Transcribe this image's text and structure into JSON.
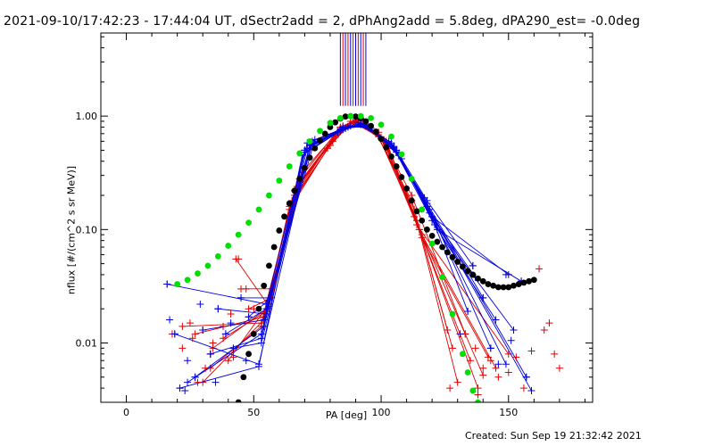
{
  "header": {
    "title": "2021-09-10/17:42:23 - 17:44:04 UT, dSectr2add = 2, dPhAng2add = 5.8deg, dPA290_est= -0.0deg",
    "created": "Created: Sun Sep 19 21:32:42 2021"
  },
  "chart_data": {
    "type": "line",
    "xlabel": "PA [deg]",
    "ylabel": "nflux [#/(cm^2 s sr MeV)]",
    "xlim": [
      -10,
      183
    ],
    "ylim": [
      0.003,
      5.4
    ],
    "yscale": "log",
    "x_ticks": [
      0,
      50,
      100,
      150
    ],
    "x_tick_labels": [
      "0",
      "50",
      "100",
      "150"
    ],
    "y_ticks": [
      0.01,
      0.1,
      1.0
    ],
    "y_tick_labels": [
      "0.01",
      "0.10",
      "1.00"
    ],
    "grid": false,
    "colors": {
      "reference_black": "#000000",
      "reference_green": "#00e000",
      "red": "#e00000",
      "blue": "#0000e0"
    },
    "reference_black": {
      "marker": "filled-circle",
      "x": [
        44,
        46,
        48,
        50,
        52,
        54,
        56,
        58,
        60,
        62,
        64,
        66,
        68,
        70,
        72,
        74,
        76,
        78,
        80,
        82,
        84,
        86,
        88,
        90,
        92,
        94,
        96,
        98,
        100,
        102,
        104,
        106,
        108,
        110,
        112,
        114,
        116,
        118,
        120,
        122,
        124,
        126,
        128,
        130,
        132,
        134,
        136,
        138,
        140,
        142,
        144,
        146,
        148,
        150,
        152,
        154,
        156,
        158,
        160
      ],
      "y": [
        0.003,
        0.005,
        0.008,
        0.012,
        0.02,
        0.032,
        0.048,
        0.07,
        0.098,
        0.13,
        0.17,
        0.22,
        0.28,
        0.35,
        0.43,
        0.52,
        0.61,
        0.7,
        0.8,
        0.88,
        0.95,
        0.99,
        1.0,
        0.99,
        0.96,
        0.9,
        0.82,
        0.73,
        0.63,
        0.53,
        0.44,
        0.36,
        0.29,
        0.23,
        0.18,
        0.145,
        0.12,
        0.1,
        0.088,
        0.078,
        0.07,
        0.063,
        0.057,
        0.052,
        0.047,
        0.043,
        0.04,
        0.037,
        0.035,
        0.033,
        0.032,
        0.031,
        0.031,
        0.031,
        0.032,
        0.033,
        0.034,
        0.035,
        0.036
      ]
    },
    "reference_green": {
      "marker": "filled-circle",
      "x": [
        20,
        24,
        28,
        32,
        36,
        40,
        44,
        48,
        52,
        56,
        60,
        64,
        68,
        72,
        76,
        80,
        84,
        88,
        92,
        96,
        100,
        104,
        108,
        112,
        116,
        120,
        124,
        128,
        132,
        134,
        136,
        138
      ],
      "y": [
        0.033,
        0.036,
        0.041,
        0.048,
        0.058,
        0.072,
        0.09,
        0.115,
        0.15,
        0.2,
        0.27,
        0.36,
        0.47,
        0.6,
        0.74,
        0.87,
        0.96,
        1.0,
        1.0,
        0.96,
        0.84,
        0.66,
        0.46,
        0.28,
        0.15,
        0.075,
        0.038,
        0.018,
        0.008,
        0.0055,
        0.0038,
        0.003
      ]
    },
    "markers_red": {
      "marker": "plus",
      "x": [
        18,
        22,
        25,
        28,
        31,
        34,
        38,
        41,
        44,
        47,
        50,
        26,
        33,
        42,
        127,
        133,
        137,
        140,
        143,
        146,
        150,
        153,
        156,
        159,
        162,
        164,
        166,
        168,
        170,
        138
      ],
      "y": [
        0.012,
        0.009,
        0.015,
        0.0045,
        0.006,
        0.01,
        0.014,
        0.018,
        0.055,
        0.03,
        0.02,
        0.011,
        0.008,
        0.0075,
        0.004,
        0.012,
        0.009,
        0.006,
        0.007,
        0.005,
        0.0055,
        0.0075,
        0.004,
        0.0085,
        0.045,
        0.013,
        0.015,
        0.008,
        0.006,
        0.0035
      ]
    },
    "markers_blue": {
      "marker": "plus",
      "x": [
        16,
        17,
        19,
        21,
        24,
        27,
        30,
        33,
        36,
        39,
        42,
        45,
        48,
        23,
        29,
        35,
        41,
        47,
        131,
        134,
        137,
        140,
        143,
        146,
        149,
        152,
        155,
        157,
        159,
        136,
        145,
        151
      ],
      "y": [
        0.033,
        0.016,
        0.012,
        0.004,
        0.007,
        0.005,
        0.013,
        0.008,
        0.02,
        0.012,
        0.009,
        0.025,
        0.017,
        0.0038,
        0.022,
        0.0045,
        0.015,
        0.007,
        0.012,
        0.019,
        0.038,
        0.025,
        0.009,
        0.0065,
        0.04,
        0.013,
        0.035,
        0.005,
        0.0038,
        0.048,
        0.016,
        0.0105
      ]
    },
    "vertical_lines": {
      "x": [
        84,
        85,
        86,
        87,
        88,
        89,
        90,
        91,
        92,
        93,
        94
      ],
      "y_from": 1.23,
      "y_to": 5.4
    },
    "profiles_red": [
      [
        [
          27,
          0.012
        ],
        [
          54,
          0.017
        ],
        [
          66,
          0.22
        ],
        [
          82,
          0.65
        ],
        [
          90,
          0.92
        ],
        [
          100,
          0.65
        ],
        [
          113,
          0.15
        ],
        [
          126,
          0.013
        ]
      ],
      [
        [
          34,
          0.009
        ],
        [
          55,
          0.02
        ],
        [
          68,
          0.28
        ],
        [
          84,
          0.8
        ],
        [
          92,
          0.95
        ],
        [
          102,
          0.58
        ],
        [
          114,
          0.12
        ],
        [
          130,
          0.0045
        ]
      ],
      [
        [
          22,
          0.014
        ],
        [
          53,
          0.015
        ],
        [
          65,
          0.18
        ],
        [
          80,
          0.55
        ],
        [
          88,
          0.9
        ],
        [
          98,
          0.7
        ],
        [
          112,
          0.18
        ],
        [
          128,
          0.009
        ]
      ],
      [
        [
          40,
          0.007
        ],
        [
          56,
          0.022
        ],
        [
          67,
          0.24
        ],
        [
          83,
          0.72
        ],
        [
          91,
          0.93
        ],
        [
          101,
          0.62
        ],
        [
          115,
          0.1
        ],
        [
          135,
          0.007
        ]
      ],
      [
        [
          30,
          0.0045
        ],
        [
          54,
          0.016
        ],
        [
          64,
          0.16
        ],
        [
          81,
          0.6
        ],
        [
          89,
          0.88
        ],
        [
          99,
          0.66
        ],
        [
          113,
          0.13
        ],
        [
          140,
          0.0052
        ]
      ],
      [
        [
          45,
          0.03
        ],
        [
          57,
          0.03
        ],
        [
          69,
          0.32
        ],
        [
          85,
          0.82
        ],
        [
          93,
          0.92
        ],
        [
          103,
          0.52
        ],
        [
          116,
          0.09
        ],
        [
          145,
          0.006
        ]
      ],
      [
        [
          38,
          0.011
        ],
        [
          55,
          0.019
        ],
        [
          66,
          0.2
        ],
        [
          82,
          0.68
        ],
        [
          90,
          0.9
        ],
        [
          100,
          0.63
        ],
        [
          114,
          0.11
        ],
        [
          150,
          0.008
        ]
      ],
      [
        [
          33,
          0.006
        ],
        [
          53,
          0.014
        ],
        [
          64,
          0.15
        ],
        [
          79,
          0.52
        ],
        [
          88,
          0.86
        ],
        [
          99,
          0.72
        ],
        [
          112,
          0.2
        ],
        [
          133,
          0.012
        ]
      ],
      [
        [
          48,
          0.02
        ],
        [
          57,
          0.025
        ],
        [
          68,
          0.26
        ],
        [
          84,
          0.78
        ],
        [
          91,
          0.96
        ],
        [
          102,
          0.6
        ],
        [
          115,
          0.1
        ],
        [
          138,
          0.004
        ]
      ],
      [
        [
          43,
          0.055
        ],
        [
          56,
          0.021
        ],
        [
          67,
          0.23
        ],
        [
          83,
          0.7
        ],
        [
          90,
          0.9
        ],
        [
          101,
          0.6
        ],
        [
          116,
          0.085
        ],
        [
          142,
          0.0075
        ]
      ]
    ],
    "profiles_blue": [
      [
        [
          16,
          0.033
        ],
        [
          55,
          0.022
        ],
        [
          70,
          0.5
        ],
        [
          85,
          0.8
        ],
        [
          93,
          0.84
        ],
        [
          104,
          0.58
        ],
        [
          118,
          0.17
        ],
        [
          140,
          0.025
        ]
      ],
      [
        [
          19,
          0.012
        ],
        [
          52,
          0.0065
        ],
        [
          72,
          0.55
        ],
        [
          86,
          0.78
        ],
        [
          94,
          0.82
        ],
        [
          106,
          0.5
        ],
        [
          120,
          0.13
        ],
        [
          150,
          0.04
        ]
      ],
      [
        [
          24,
          0.0045
        ],
        [
          53,
          0.012
        ],
        [
          71,
          0.58
        ],
        [
          84,
          0.76
        ],
        [
          92,
          0.86
        ],
        [
          105,
          0.54
        ],
        [
          119,
          0.15
        ],
        [
          157,
          0.005
        ]
      ],
      [
        [
          30,
          0.013
        ],
        [
          54,
          0.016
        ],
        [
          73,
          0.6
        ],
        [
          87,
          0.8
        ],
        [
          95,
          0.8
        ],
        [
          107,
          0.46
        ],
        [
          121,
          0.11
        ],
        [
          145,
          0.016
        ]
      ],
      [
        [
          36,
          0.02
        ],
        [
          55,
          0.018
        ],
        [
          70,
          0.5
        ],
        [
          83,
          0.72
        ],
        [
          91,
          0.88
        ],
        [
          103,
          0.6
        ],
        [
          117,
          0.19
        ],
        [
          134,
          0.019
        ]
      ],
      [
        [
          42,
          0.009
        ],
        [
          53,
          0.01
        ],
        [
          72,
          0.56
        ],
        [
          85,
          0.77
        ],
        [
          93,
          0.85
        ],
        [
          105,
          0.52
        ],
        [
          120,
          0.12
        ],
        [
          152,
          0.013
        ]
      ],
      [
        [
          48,
          0.017
        ],
        [
          56,
          0.024
        ],
        [
          74,
          0.62
        ],
        [
          88,
          0.82
        ],
        [
          96,
          0.78
        ],
        [
          108,
          0.42
        ],
        [
          122,
          0.1
        ],
        [
          155,
          0.035
        ]
      ],
      [
        [
          21,
          0.004
        ],
        [
          52,
          0.0062
        ],
        [
          69,
          0.45
        ],
        [
          84,
          0.74
        ],
        [
          92,
          0.84
        ],
        [
          104,
          0.56
        ],
        [
          118,
          0.16
        ],
        [
          159,
          0.0038
        ]
      ],
      [
        [
          27,
          0.005
        ],
        [
          54,
          0.014
        ],
        [
          71,
          0.52
        ],
        [
          86,
          0.79
        ],
        [
          94,
          0.83
        ],
        [
          106,
          0.48
        ],
        [
          121,
          0.12
        ],
        [
          143,
          0.009
        ]
      ],
      [
        [
          39,
          0.012
        ],
        [
          55,
          0.02
        ],
        [
          73,
          0.58
        ],
        [
          87,
          0.8
        ],
        [
          95,
          0.8
        ],
        [
          107,
          0.45
        ],
        [
          119,
          0.14
        ],
        [
          137,
          0.038
        ]
      ],
      [
        [
          33,
          0.008
        ],
        [
          53,
          0.011
        ],
        [
          70,
          0.48
        ],
        [
          85,
          0.76
        ],
        [
          93,
          0.86
        ],
        [
          105,
          0.53
        ],
        [
          120,
          0.13
        ],
        [
          149,
          0.0065
        ]
      ],
      [
        [
          45,
          0.025
        ],
        [
          56,
          0.025
        ],
        [
          72,
          0.55
        ],
        [
          86,
          0.78
        ],
        [
          94,
          0.82
        ],
        [
          106,
          0.5
        ],
        [
          118,
          0.18
        ],
        [
          136,
          0.048
        ]
      ]
    ]
  }
}
